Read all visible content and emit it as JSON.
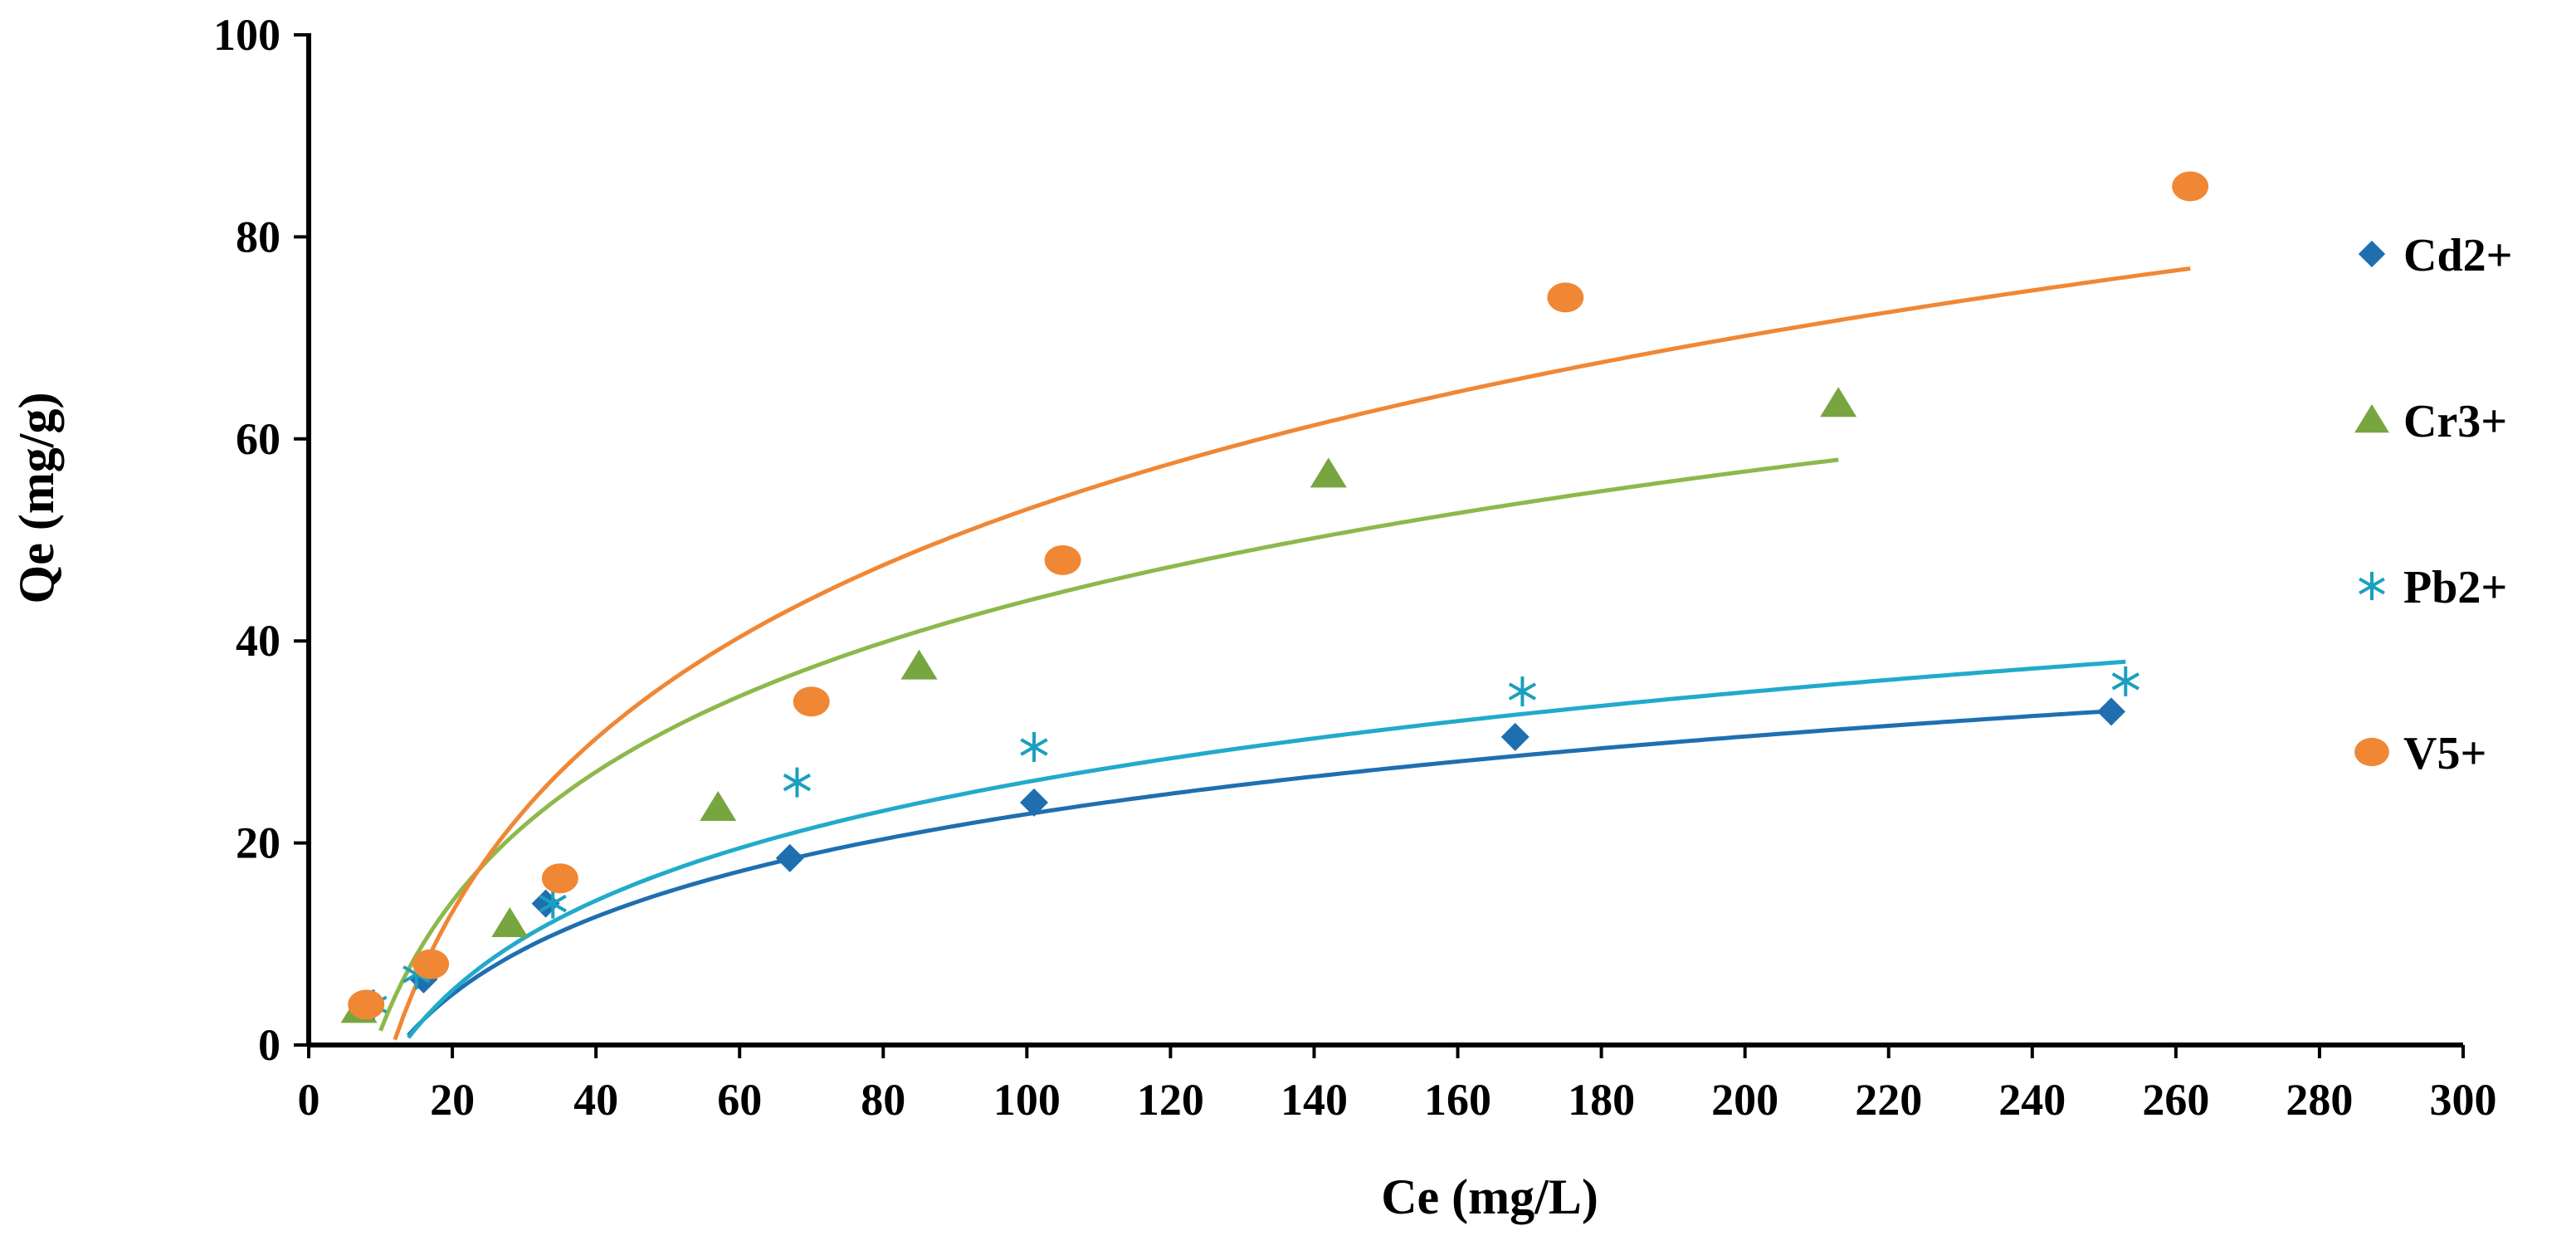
{
  "chart_data": {
    "type": "scatter",
    "title": "",
    "xlabel": "Ce (mg/L)",
    "ylabel": "Qe (mg/g)",
    "xlim": [
      0,
      300
    ],
    "ylim": [
      0,
      100
    ],
    "xticks": [
      0,
      20,
      40,
      60,
      80,
      100,
      120,
      140,
      160,
      180,
      200,
      220,
      240,
      260,
      280,
      300
    ],
    "yticks": [
      0,
      20,
      40,
      60,
      80,
      100
    ],
    "xtick_labels": [
      "0",
      "20",
      "40",
      "60",
      "80",
      "100",
      "120",
      "140",
      "160",
      "180",
      "200",
      "220",
      "240",
      "260",
      "280",
      "300"
    ],
    "ytick_labels": [
      "0",
      "20",
      "40",
      "60",
      "80",
      "100"
    ],
    "grid": false,
    "legend_position": "right",
    "series": [
      {
        "name": "Cd2+",
        "marker": "diamond",
        "color": "#1F6FB0",
        "line_color": "#1F6FB0",
        "x": [
          8,
          16,
          33,
          67,
          101,
          168,
          251
        ],
        "y": [
          4,
          6.5,
          14,
          18.5,
          24,
          30.5,
          33
        ],
        "fit": {
          "a": 11.09,
          "b": -28.22,
          "x_range": [
            9,
            252
          ]
        }
      },
      {
        "name": "Cr3+",
        "marker": "triangle",
        "color": "#77A540",
        "line_color": "#8DB84B",
        "x": [
          7,
          28,
          57,
          85,
          142,
          213
        ],
        "y": [
          3.5,
          12,
          23.5,
          37.5,
          56.5,
          63.5
        ],
        "fit": {
          "a": 18.48,
          "b": -41.14,
          "x_range": [
            10,
            213
          ]
        }
      },
      {
        "name": "Pb2+",
        "marker": "asterisk",
        "color": "#1AA0BE",
        "line_color": "#22AACB",
        "x": [
          9,
          15,
          34,
          68,
          101,
          169,
          253
        ],
        "y": [
          4,
          7,
          14,
          26,
          29.5,
          35,
          36
        ],
        "fit": {
          "a": 12.82,
          "b": -33.0,
          "x_range": [
            9,
            253
          ]
        }
      },
      {
        "name": "V5+",
        "marker": "circle",
        "color": "#F08735",
        "line_color": "#F08735",
        "x": [
          8,
          17,
          35,
          70,
          105,
          175,
          262
        ],
        "y": [
          4,
          8,
          16.5,
          34,
          48,
          74,
          85
        ],
        "fit": {
          "a": 24.76,
          "b": -61.0,
          "x_range": [
            12,
            262
          ]
        }
      }
    ]
  }
}
